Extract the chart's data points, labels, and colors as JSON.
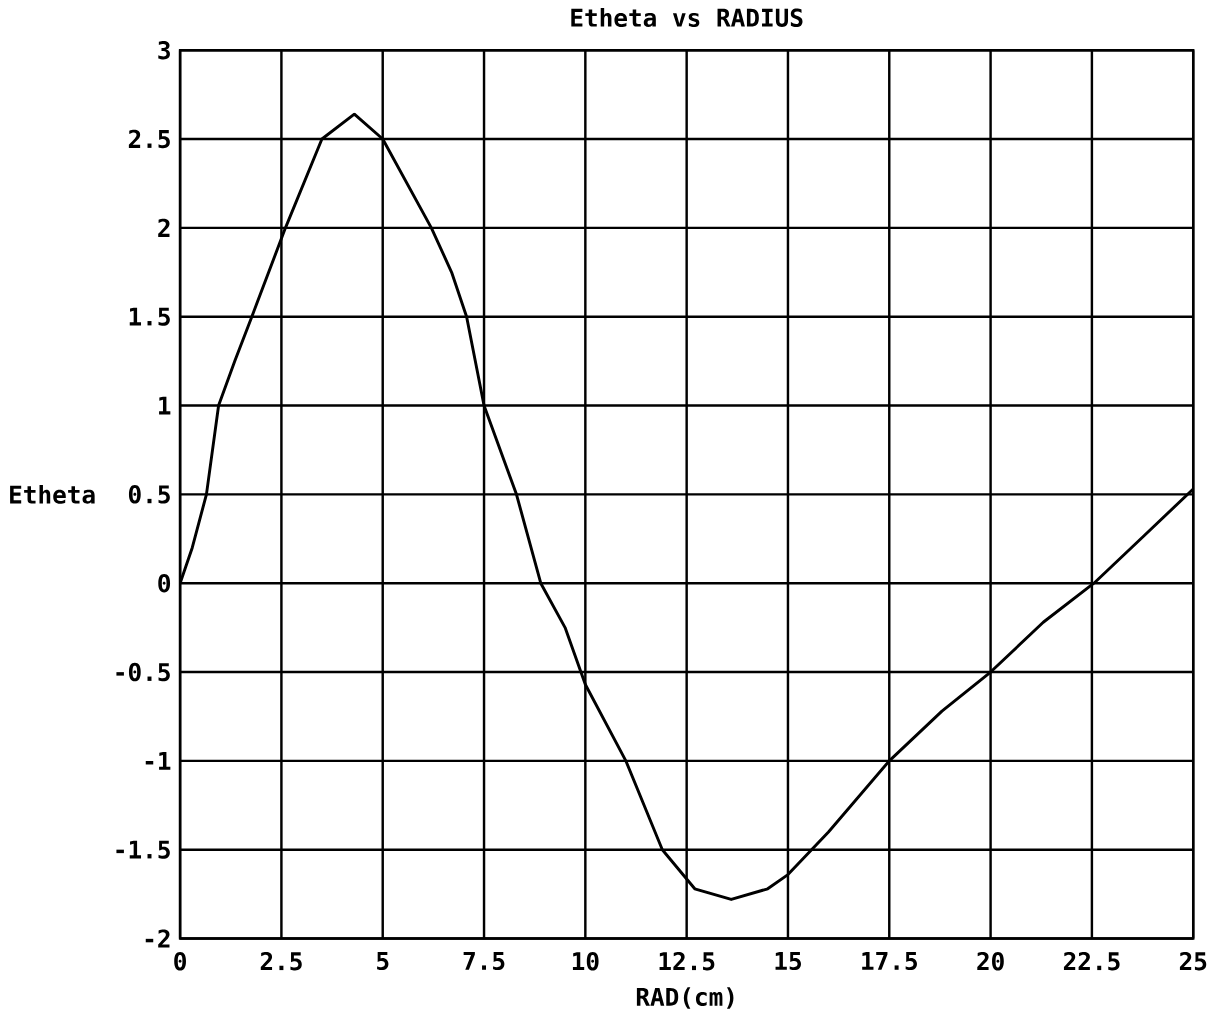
{
  "chart_data": {
    "type": "line",
    "title": "Etheta vs RADIUS",
    "xlabel": "RAD(cm)",
    "ylabel": "Etheta",
    "x": [
      0,
      0.3,
      0.65,
      0.95,
      1.35,
      1.77,
      2.6,
      3.5,
      4.3,
      5,
      5.6,
      6.2,
      6.7,
      7.07,
      7.5,
      8.3,
      8.9,
      9.5,
      10,
      11,
      11.9,
      12.7,
      13.6,
      14.5,
      15,
      16,
      17.5,
      18.8,
      20,
      21.3,
      22.55,
      23.8,
      25
    ],
    "series": [
      {
        "color": "#000000",
        "values": [
          0,
          0.2,
          0.5,
          1.0,
          1.25,
          1.5,
          2.0,
          2.5,
          2.64,
          2.5,
          2.25,
          2.0,
          1.75,
          1.5,
          1.0,
          0.5,
          0,
          -0.25,
          -0.57,
          -1.0,
          -1.5,
          -1.72,
          -1.78,
          -1.72,
          -1.64,
          -1.4,
          -1.0,
          -0.72,
          -0.5,
          -0.22,
          0,
          0.27,
          0.53
        ]
      }
    ],
    "xlim": [
      0,
      25
    ],
    "ylim": [
      -2,
      3
    ],
    "xticks": [
      0,
      2.5,
      5,
      7.5,
      10,
      12.5,
      15,
      17.5,
      20,
      22.5,
      25
    ],
    "yticks": [
      -2,
      -1.5,
      -1,
      -0.5,
      0,
      0.5,
      1,
      1.5,
      2,
      2.5,
      3
    ],
    "grid": true,
    "marker": "none",
    "line_style": "solid"
  }
}
